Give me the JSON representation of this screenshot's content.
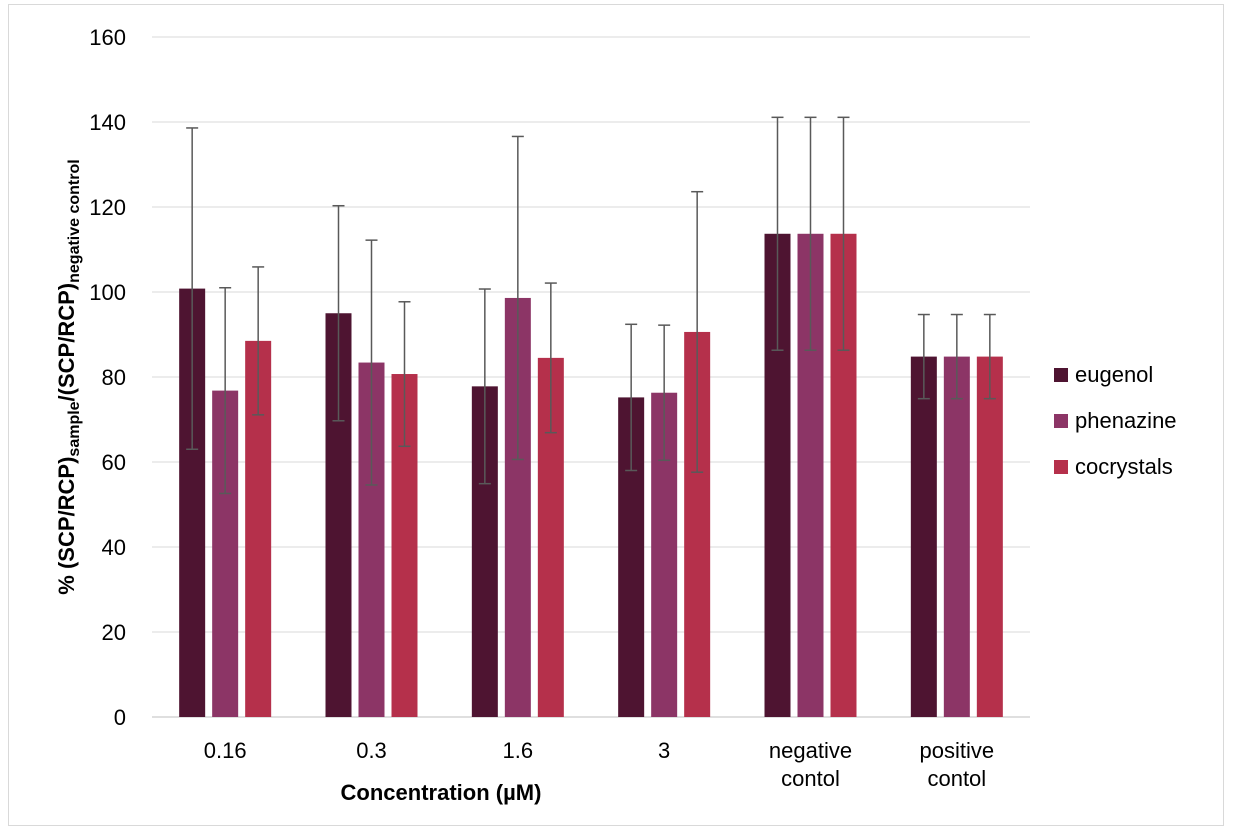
{
  "chart_data": {
    "type": "bar",
    "title": "",
    "xlabel": "Concentration (µM)",
    "ylabel": {
      "main": "% (SCP/RCP)",
      "sub1": "sample",
      "mid": "/(SCP/RCP)",
      "sub2": "negative control"
    },
    "ylim": [
      0,
      160
    ],
    "yticks": [
      0,
      20,
      40,
      60,
      80,
      100,
      120,
      140,
      160
    ],
    "grid": true,
    "legend_position": "right",
    "categories": [
      [
        "0.16"
      ],
      [
        "0.3"
      ],
      [
        "1.6"
      ],
      [
        "3"
      ],
      [
        "negative",
        "contol"
      ],
      [
        "positive",
        "contol"
      ]
    ],
    "series": [
      {
        "name": "eugenol",
        "color": "#4e1431",
        "values": [
          100.8,
          95.0,
          77.8,
          75.2,
          113.7,
          84.8
        ],
        "errors": [
          37.8,
          25.3,
          22.9,
          17.2,
          27.4,
          9.9
        ]
      },
      {
        "name": "phenazine",
        "color": "#8c3566",
        "values": [
          76.8,
          83.4,
          98.6,
          76.3,
          113.7,
          84.8
        ],
        "errors": [
          24.2,
          28.8,
          38.0,
          15.9,
          27.4,
          9.9
        ]
      },
      {
        "name": "cocrystals",
        "color": "#b5304b",
        "values": [
          88.5,
          80.7,
          84.5,
          90.6,
          113.7,
          84.8
        ],
        "errors": [
          17.4,
          17.0,
          17.6,
          33.0,
          27.4,
          9.9
        ]
      }
    ]
  }
}
